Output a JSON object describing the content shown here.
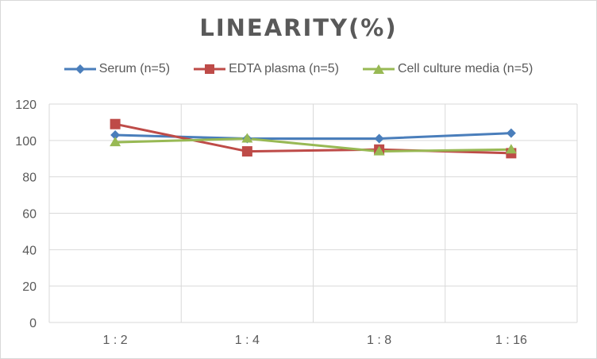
{
  "chart_data": {
    "type": "line",
    "title": "LINEARITY(%)",
    "categories": [
      "1:2",
      "1:4",
      "1:8",
      "1:16"
    ],
    "ylim": [
      0,
      120
    ],
    "yticks": [
      0,
      20,
      40,
      60,
      80,
      100,
      120
    ],
    "grid": "horizontal",
    "legend_position": "top",
    "series": [
      {
        "name": "Serum (n=5)",
        "values": [
          103,
          101,
          101,
          104
        ],
        "color": "#4a7ebb",
        "marker": "diamond"
      },
      {
        "name": "EDTA plasma (n=5)",
        "values": [
          109,
          94,
          95,
          93
        ],
        "color": "#be4b48",
        "marker": "square"
      },
      {
        "name": "Cell culture media (n=5)",
        "values": [
          99,
          101,
          94,
          95
        ],
        "color": "#98b954",
        "marker": "triangle"
      }
    ]
  }
}
